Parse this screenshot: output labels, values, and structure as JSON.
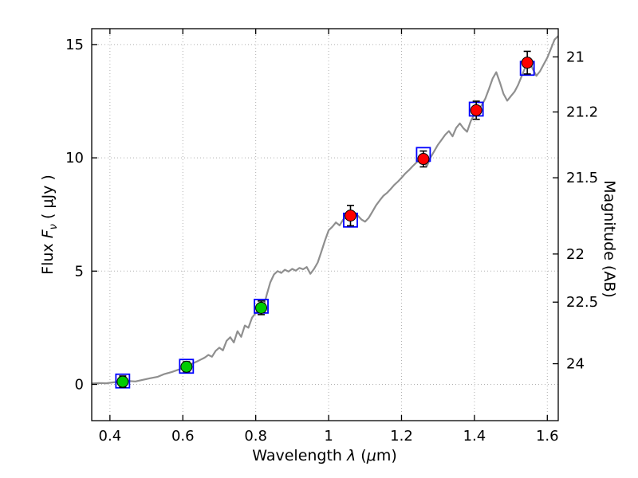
{
  "chart_data": {
    "type": "line",
    "title": "",
    "xlabel": "Wavelength λ (μm)",
    "ylabel": "Flux Fν ( μJy )",
    "ylabel_right": "Magnitude (AB)",
    "xlabel_parts": {
      "word": "Wavelength ",
      "lambda": "λ",
      "p1": " (",
      "mu": "μ",
      "p2": "m)"
    },
    "ylabel_parts": {
      "flux": "Flux ",
      "F": "F",
      "nu": "ν",
      "unit": " ( μJy )"
    },
    "xlim": [
      0.35,
      1.63
    ],
    "ylim": [
      -1.6,
      15.7
    ],
    "grid": true,
    "x_ticks": [
      0.4,
      0.6,
      0.8,
      1,
      1.2,
      1.4,
      1.6
    ],
    "x_tick_labels": [
      "0.4",
      "0.6",
      "0.8",
      "1",
      "1.2",
      "1.4",
      "1.6"
    ],
    "y_ticks": [
      0,
      5,
      10,
      15
    ],
    "y_tick_labels": [
      "0",
      "5",
      "10",
      "15"
    ],
    "right_axis": {
      "label": "Magnitude (AB)",
      "ticks": [
        {
          "label": "21",
          "flux": 14.454
        },
        {
          "label": "21.2",
          "flux": 12.023
        },
        {
          "label": "21.5",
          "flux": 9.12
        },
        {
          "label": "22",
          "flux": 5.754
        },
        {
          "label": "22.5",
          "flux": 3.631
        },
        {
          "label": "24",
          "flux": 0.912
        }
      ]
    },
    "colors": {
      "spectrum": "#8f8f8f",
      "model_marker": "#0000ff",
      "observed_red": "#ff0000",
      "observed_green": "#00cc00",
      "errorbar": "#000000",
      "grid": "#b0b0b0",
      "frame": "#000000"
    },
    "series": [
      {
        "name": "model-spectrum",
        "type": "line",
        "x": [
          0.35,
          0.37,
          0.39,
          0.41,
          0.43,
          0.45,
          0.47,
          0.49,
          0.51,
          0.53,
          0.55,
          0.57,
          0.59,
          0.61,
          0.63,
          0.64,
          0.65,
          0.66,
          0.67,
          0.68,
          0.69,
          0.7,
          0.71,
          0.72,
          0.73,
          0.74,
          0.75,
          0.76,
          0.77,
          0.78,
          0.79,
          0.8,
          0.81,
          0.82,
          0.83,
          0.84,
          0.85,
          0.86,
          0.87,
          0.88,
          0.89,
          0.9,
          0.91,
          0.92,
          0.93,
          0.94,
          0.95,
          0.96,
          0.97,
          0.98,
          0.99,
          1.0,
          1.01,
          1.02,
          1.03,
          1.04,
          1.05,
          1.06,
          1.07,
          1.08,
          1.09,
          1.1,
          1.11,
          1.12,
          1.13,
          1.14,
          1.15,
          1.16,
          1.17,
          1.18,
          1.19,
          1.2,
          1.21,
          1.22,
          1.23,
          1.24,
          1.25,
          1.26,
          1.27,
          1.28,
          1.29,
          1.3,
          1.31,
          1.32,
          1.33,
          1.34,
          1.35,
          1.36,
          1.37,
          1.38,
          1.39,
          1.4,
          1.41,
          1.42,
          1.43,
          1.44,
          1.45,
          1.46,
          1.47,
          1.48,
          1.49,
          1.5,
          1.51,
          1.52,
          1.53,
          1.54,
          1.55,
          1.56,
          1.57,
          1.58,
          1.59,
          1.6,
          1.61,
          1.62,
          1.63
        ],
        "y": [
          0.04,
          0.06,
          0.05,
          0.09,
          0.12,
          0.15,
          0.13,
          0.2,
          0.27,
          0.33,
          0.46,
          0.55,
          0.66,
          0.8,
          0.95,
          1.02,
          1.1,
          1.18,
          1.3,
          1.22,
          1.48,
          1.62,
          1.5,
          1.92,
          2.08,
          1.85,
          2.35,
          2.1,
          2.6,
          2.5,
          2.95,
          3.15,
          3.42,
          3.3,
          3.95,
          4.5,
          4.85,
          5.0,
          4.92,
          5.06,
          4.98,
          5.1,
          5.02,
          5.14,
          5.08,
          5.18,
          4.88,
          5.1,
          5.38,
          5.85,
          6.35,
          6.8,
          6.95,
          7.15,
          7.02,
          7.28,
          7.38,
          7.3,
          7.52,
          7.45,
          7.28,
          7.18,
          7.35,
          7.62,
          7.9,
          8.12,
          8.32,
          8.45,
          8.62,
          8.8,
          8.95,
          9.12,
          9.3,
          9.45,
          9.62,
          9.78,
          9.92,
          9.8,
          9.65,
          10.02,
          10.3,
          10.58,
          10.8,
          11.02,
          11.18,
          10.95,
          11.32,
          11.52,
          11.3,
          11.15,
          11.62,
          11.92,
          12.12,
          12.32,
          12.62,
          13.05,
          13.5,
          13.78,
          13.32,
          12.82,
          12.52,
          12.72,
          12.92,
          13.22,
          13.62,
          14.02,
          14.32,
          13.92,
          13.62,
          13.82,
          14.12,
          14.42,
          14.82,
          15.22,
          15.38
        ]
      },
      {
        "name": "model-photometry-squares",
        "type": "scatter-square",
        "points": [
          {
            "x": 0.435,
            "y": 0.15
          },
          {
            "x": 0.61,
            "y": 0.8
          },
          {
            "x": 0.815,
            "y": 3.45
          },
          {
            "x": 1.06,
            "y": 7.25
          },
          {
            "x": 1.26,
            "y": 10.15
          },
          {
            "x": 1.405,
            "y": 12.15
          },
          {
            "x": 1.545,
            "y": 13.95
          }
        ]
      },
      {
        "name": "observed-photometry-circles",
        "type": "scatter-circle-errorbar",
        "points": [
          {
            "x": 0.435,
            "y": 0.12,
            "yerr": 0.25,
            "color": "#00cc00"
          },
          {
            "x": 0.61,
            "y": 0.78,
            "yerr": 0.22,
            "color": "#00cc00"
          },
          {
            "x": 0.815,
            "y": 3.38,
            "yerr": 0.3,
            "color": "#00cc00"
          },
          {
            "x": 1.06,
            "y": 7.45,
            "yerr": 0.45,
            "color": "#ff0000"
          },
          {
            "x": 1.26,
            "y": 9.95,
            "yerr": 0.35,
            "color": "#ff0000"
          },
          {
            "x": 1.405,
            "y": 12.1,
            "yerr": 0.4,
            "color": "#ff0000"
          },
          {
            "x": 1.545,
            "y": 14.2,
            "yerr": 0.5,
            "color": "#ff0000"
          }
        ]
      }
    ]
  }
}
